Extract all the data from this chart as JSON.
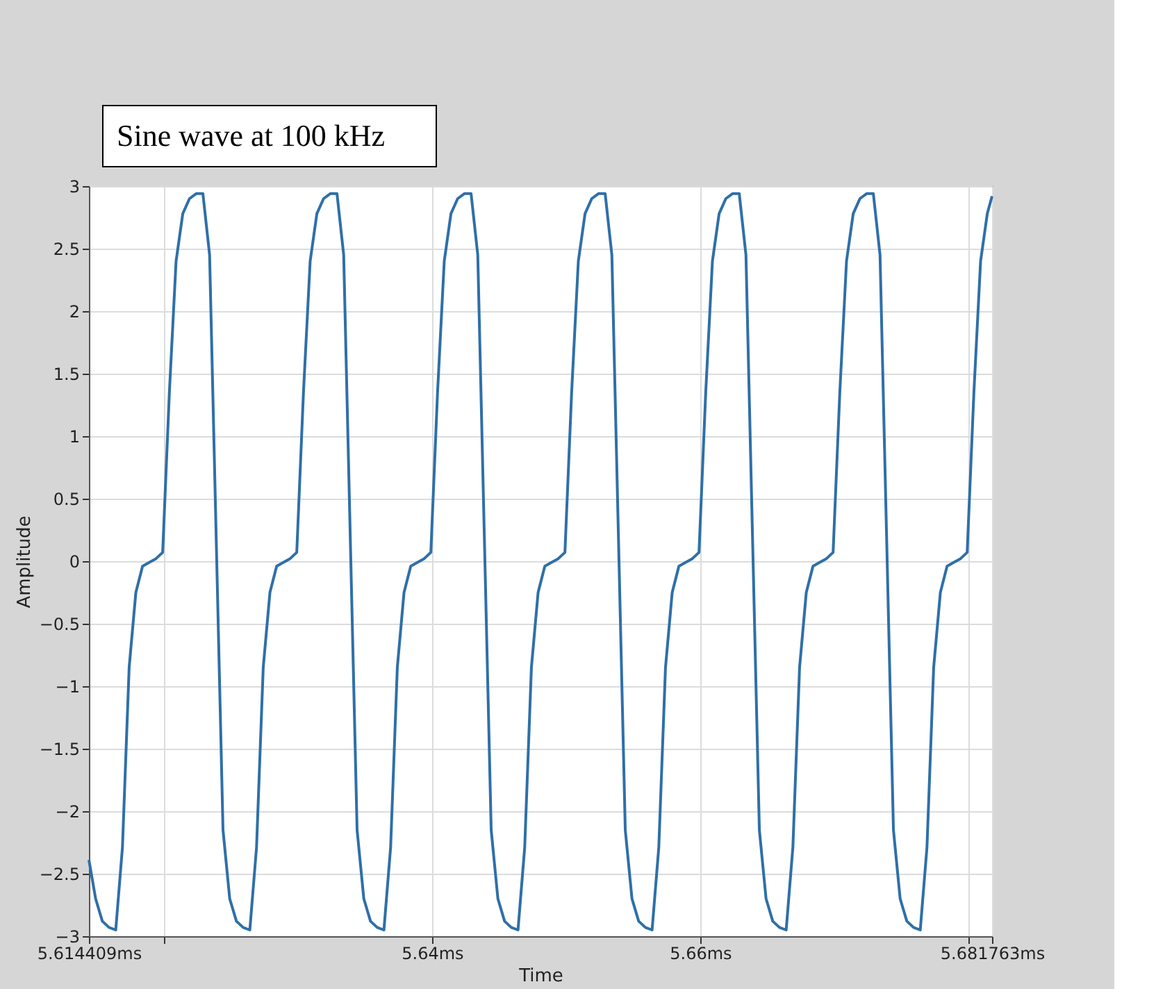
{
  "chart_data": {
    "type": "line",
    "xlabel": "Time",
    "ylabel": "Amplitude",
    "annotations": [
      "Sine wave at 100 kHz"
    ],
    "xlim": [
      5.614409,
      5.681763
    ],
    "ylim": [
      -3,
      3
    ],
    "xticks": [
      {
        "value": 5.614409,
        "label": "5.614409ms"
      },
      {
        "value": 5.62,
        "label": null
      },
      {
        "value": 5.64,
        "label": "5.64ms"
      },
      {
        "value": 5.66,
        "label": "5.66ms"
      },
      {
        "value": 5.68,
        "label": null
      },
      {
        "value": 5.681763,
        "label": "5.681763ms"
      }
    ],
    "yticks": [
      -3,
      -2.5,
      -2,
      -1.5,
      -1,
      -0.5,
      0,
      0.5,
      1,
      1.5,
      2,
      2.5,
      3
    ],
    "grid": true,
    "x": [
      5.614409,
      5.614909,
      5.615409,
      5.615909,
      5.616409,
      5.616909,
      5.617409,
      5.617909,
      5.618409,
      5.618909,
      5.619409,
      5.619909,
      5.620409,
      5.620909,
      5.621409,
      5.621909,
      5.622409,
      5.622909,
      5.623409,
      5.623909,
      5.624409,
      5.624909,
      5.625409,
      5.625909,
      5.626409,
      5.626909,
      5.627409,
      5.627909,
      5.628409,
      5.628909,
      5.629409,
      5.629909,
      5.630409,
      5.630909,
      5.631409,
      5.631909,
      5.632409,
      5.632909,
      5.633409,
      5.633909,
      5.634409,
      5.634909,
      5.635409,
      5.635909,
      5.636409,
      5.636909,
      5.637409,
      5.637909,
      5.638409,
      5.638909,
      5.639409,
      5.639909,
      5.640409,
      5.640909,
      5.641409,
      5.641909,
      5.642409,
      5.642909,
      5.643409,
      5.643909,
      5.644409,
      5.644909,
      5.645409,
      5.645909,
      5.646409,
      5.646909,
      5.647409,
      5.647909,
      5.648409,
      5.648909,
      5.649409,
      5.649909,
      5.650409,
      5.650909,
      5.651409,
      5.651909,
      5.652409,
      5.652909,
      5.653409,
      5.653909,
      5.654409,
      5.654909,
      5.655409,
      5.655909,
      5.656409,
      5.656909,
      5.657409,
      5.657909,
      5.658409,
      5.658909,
      5.659409,
      5.659909,
      5.660409,
      5.660909,
      5.661409,
      5.661909,
      5.662409,
      5.662909,
      5.663409,
      5.663909,
      5.664409,
      5.664909,
      5.665409,
      5.665909,
      5.666409,
      5.666909,
      5.667409,
      5.667909,
      5.668409,
      5.668909,
      5.669409,
      5.669909,
      5.670409,
      5.670909,
      5.671409,
      5.671909,
      5.672409,
      5.672909,
      5.673409,
      5.673909,
      5.674409,
      5.674909,
      5.675409,
      5.675909,
      5.676409,
      5.676909,
      5.677409,
      5.677909,
      5.678409,
      5.678909,
      5.679409,
      5.679909,
      5.680409,
      5.680909,
      5.681409,
      5.681763
    ],
    "series": [
      {
        "color": "#2f6fa8",
        "values": [
          -2.39,
          -2.7,
          -2.88,
          -2.93,
          -2.95,
          -2.29,
          -0.85,
          -0.25,
          -0.04,
          -0.01,
          0.02,
          0.07,
          1.35,
          2.4,
          2.78,
          2.9,
          2.94,
          2.94,
          2.45,
          0.15,
          -2.15,
          -2.7,
          -2.88,
          -2.93,
          -2.95,
          -2.29,
          -0.85,
          -0.25,
          -0.04,
          -0.01,
          0.02,
          0.07,
          1.35,
          2.4,
          2.78,
          2.9,
          2.94,
          2.94,
          2.45,
          0.15,
          -2.15,
          -2.7,
          -2.88,
          -2.93,
          -2.95,
          -2.29,
          -0.85,
          -0.25,
          -0.04,
          -0.01,
          0.02,
          0.07,
          1.35,
          2.4,
          2.78,
          2.9,
          2.94,
          2.94,
          2.45,
          0.15,
          -2.15,
          -2.7,
          -2.88,
          -2.93,
          -2.95,
          -2.29,
          -0.85,
          -0.25,
          -0.04,
          -0.01,
          0.02,
          0.07,
          1.35,
          2.4,
          2.78,
          2.9,
          2.94,
          2.94,
          2.45,
          0.15,
          -2.15,
          -2.7,
          -2.88,
          -2.93,
          -2.95,
          -2.29,
          -0.85,
          -0.25,
          -0.04,
          -0.01,
          0.02,
          0.07,
          1.35,
          2.4,
          2.78,
          2.9,
          2.94,
          2.94,
          2.45,
          0.15,
          -2.15,
          -2.7,
          -2.88,
          -2.93,
          -2.95,
          -2.29,
          -0.85,
          -0.25,
          -0.04,
          -0.01,
          0.02,
          0.07,
          1.35,
          2.4,
          2.78,
          2.9,
          2.94,
          2.94,
          2.45,
          0.15,
          -2.15,
          -2.7,
          -2.88,
          -2.93,
          -2.95,
          -2.29,
          -0.85,
          -0.25,
          -0.04,
          -0.01,
          0.02,
          0.07,
          1.35,
          2.4,
          2.78,
          2.92
        ]
      }
    ]
  }
}
